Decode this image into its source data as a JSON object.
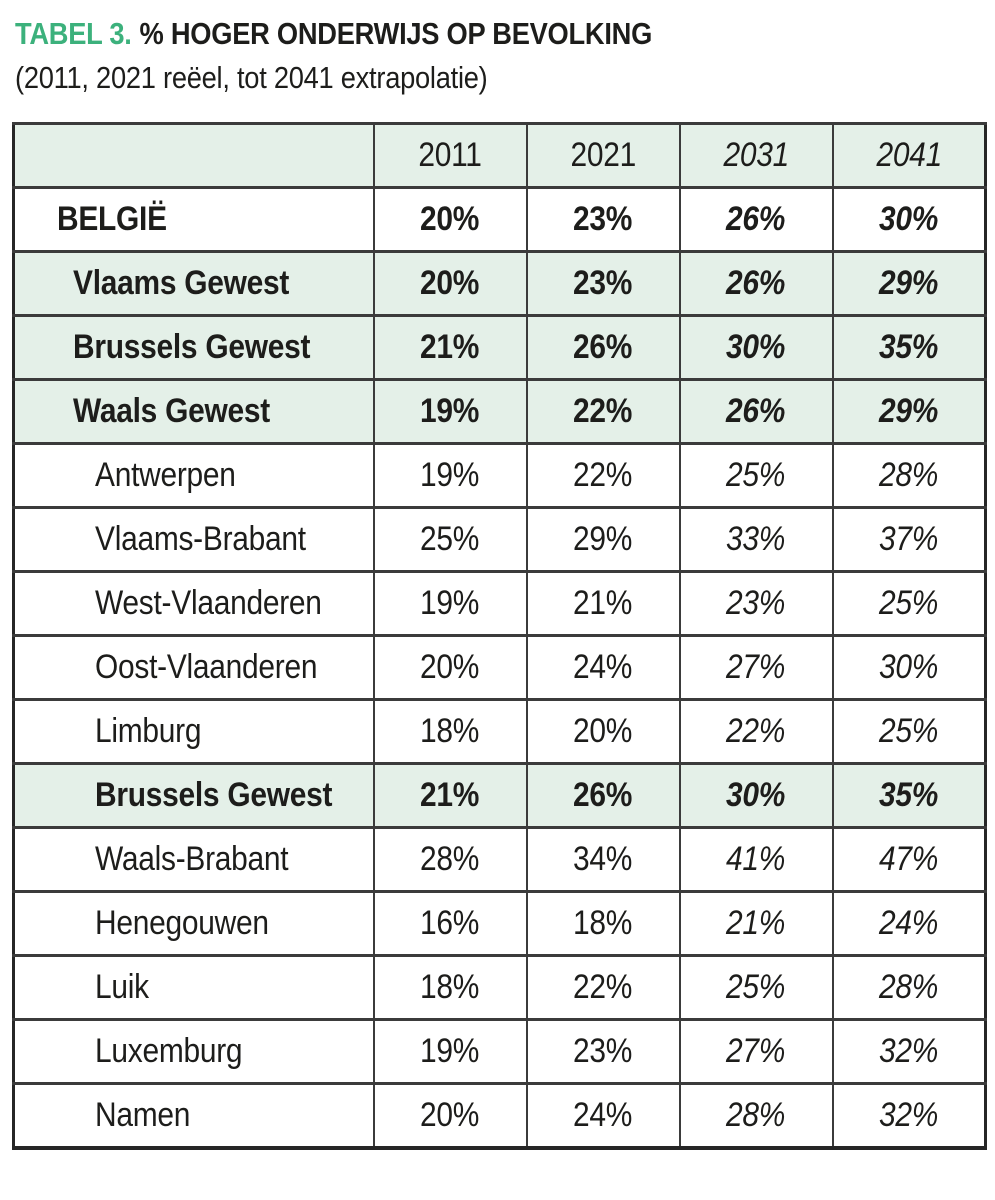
{
  "title": {
    "prefix": "TABEL 3.",
    "text": "% HOGER ONDERWIJS OP BEVOLKING",
    "subtitle": "(2011, 2021 reëel, tot 2041 extrapolatie)"
  },
  "colors": {
    "accent_green": "#3cb17c",
    "highlight_row_green": "#e4f0e8",
    "border": "#3b3b3b",
    "text": "#1d1d1b"
  },
  "table": {
    "columns": [
      "",
      "2011",
      "2021",
      "2031",
      "2041"
    ],
    "rows": [
      {
        "label": "BELGIË",
        "values": [
          "20%",
          "23%",
          "26%",
          "30%"
        ],
        "bold": true,
        "green": false,
        "indent": 0
      },
      {
        "label": "Vlaams Gewest",
        "values": [
          "20%",
          "23%",
          "26%",
          "29%"
        ],
        "bold": true,
        "green": true,
        "indent": 1
      },
      {
        "label": "Brussels Gewest",
        "values": [
          "21%",
          "26%",
          "30%",
          "35%"
        ],
        "bold": true,
        "green": true,
        "indent": 1
      },
      {
        "label": "Waals Gewest",
        "values": [
          "19%",
          "22%",
          "26%",
          "29%"
        ],
        "bold": true,
        "green": true,
        "indent": 1
      },
      {
        "label": "Antwerpen",
        "values": [
          "19%",
          "22%",
          "25%",
          "28%"
        ],
        "bold": false,
        "green": false,
        "indent": 2
      },
      {
        "label": "Vlaams-Brabant",
        "values": [
          "25%",
          "29%",
          "33%",
          "37%"
        ],
        "bold": false,
        "green": false,
        "indent": 2
      },
      {
        "label": "West-Vlaanderen",
        "values": [
          "19%",
          "21%",
          "23%",
          "25%"
        ],
        "bold": false,
        "green": false,
        "indent": 2
      },
      {
        "label": "Oost-Vlaanderen",
        "values": [
          "20%",
          "24%",
          "27%",
          "30%"
        ],
        "bold": false,
        "green": false,
        "indent": 2
      },
      {
        "label": "Limburg",
        "values": [
          "18%",
          "20%",
          "22%",
          "25%"
        ],
        "bold": false,
        "green": false,
        "indent": 2
      },
      {
        "label": "Brussels Gewest",
        "values": [
          "21%",
          "26%",
          "30%",
          "35%"
        ],
        "bold": true,
        "green": true,
        "indent": 2
      },
      {
        "label": "Waals-Brabant",
        "values": [
          "28%",
          "34%",
          "41%",
          "47%"
        ],
        "bold": false,
        "green": false,
        "indent": 2
      },
      {
        "label": "Henegouwen",
        "values": [
          "16%",
          "18%",
          "21%",
          "24%"
        ],
        "bold": false,
        "green": false,
        "indent": 2
      },
      {
        "label": "Luik",
        "values": [
          "18%",
          "22%",
          "25%",
          "28%"
        ],
        "bold": false,
        "green": false,
        "indent": 2
      },
      {
        "label": "Luxemburg",
        "values": [
          "19%",
          "23%",
          "27%",
          "32%"
        ],
        "bold": false,
        "green": false,
        "indent": 2
      },
      {
        "label": "Namen",
        "values": [
          "20%",
          "24%",
          "28%",
          "32%"
        ],
        "bold": false,
        "green": false,
        "indent": 2
      }
    ]
  },
  "chart_data": {
    "type": "table",
    "title": "TABEL 3. % HOGER ONDERWIJS OP BEVOLKING",
    "subtitle": "(2011, 2021 reëel, tot 2041 extrapolatie)",
    "columns": [
      "2011",
      "2021",
      "2031",
      "2041"
    ],
    "real_columns": [
      "2011",
      "2021"
    ],
    "extrapolated_columns": [
      "2031",
      "2041"
    ],
    "unit": "percent",
    "rows": [
      {
        "name": "BELGIË",
        "level": "country",
        "values_pct": [
          20,
          23,
          26,
          30
        ]
      },
      {
        "name": "Vlaams Gewest",
        "level": "region",
        "values_pct": [
          20,
          23,
          26,
          29
        ]
      },
      {
        "name": "Brussels Gewest",
        "level": "region",
        "values_pct": [
          21,
          26,
          30,
          35
        ]
      },
      {
        "name": "Waals Gewest",
        "level": "region",
        "values_pct": [
          19,
          22,
          26,
          29
        ]
      },
      {
        "name": "Antwerpen",
        "level": "province",
        "values_pct": [
          19,
          22,
          25,
          28
        ]
      },
      {
        "name": "Vlaams-Brabant",
        "level": "province",
        "values_pct": [
          25,
          29,
          33,
          37
        ]
      },
      {
        "name": "West-Vlaanderen",
        "level": "province",
        "values_pct": [
          19,
          21,
          23,
          25
        ]
      },
      {
        "name": "Oost-Vlaanderen",
        "level": "province",
        "values_pct": [
          20,
          24,
          27,
          30
        ]
      },
      {
        "name": "Limburg",
        "level": "province",
        "values_pct": [
          18,
          20,
          22,
          25
        ]
      },
      {
        "name": "Brussels Gewest",
        "level": "region",
        "values_pct": [
          21,
          26,
          30,
          35
        ]
      },
      {
        "name": "Waals-Brabant",
        "level": "province",
        "values_pct": [
          28,
          34,
          41,
          47
        ]
      },
      {
        "name": "Henegouwen",
        "level": "province",
        "values_pct": [
          16,
          18,
          21,
          24
        ]
      },
      {
        "name": "Luik",
        "level": "province",
        "values_pct": [
          18,
          22,
          25,
          28
        ]
      },
      {
        "name": "Luxemburg",
        "level": "province",
        "values_pct": [
          19,
          23,
          27,
          32
        ]
      },
      {
        "name": "Namen",
        "level": "province",
        "values_pct": [
          20,
          24,
          28,
          32
        ]
      }
    ]
  }
}
